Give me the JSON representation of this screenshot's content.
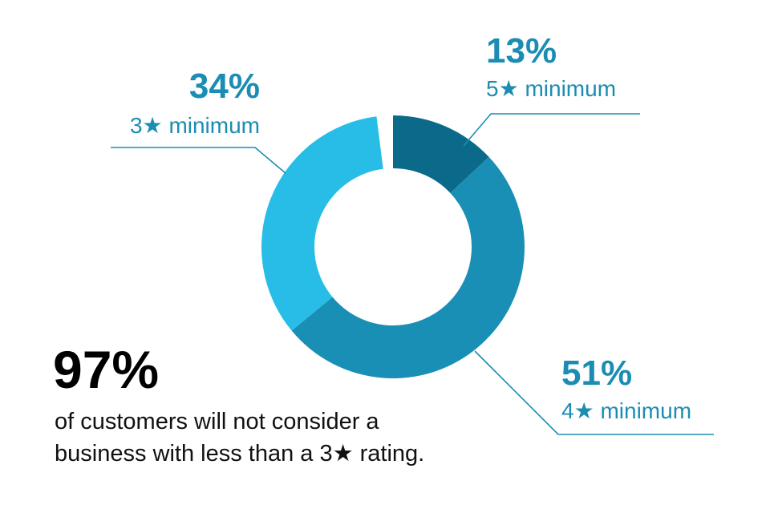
{
  "chart_data": {
    "type": "pie",
    "variant": "donut",
    "categories": [
      "5★ minimum",
      "4★ minimum",
      "3★ minimum"
    ],
    "values": [
      13,
      51,
      34
    ],
    "value_labels": [
      "13%",
      "51%",
      "34%"
    ],
    "unit": "%",
    "colors": [
      "#0b6a8a",
      "#1a8fb5",
      "#27bde6"
    ],
    "label_color": "#1b8db3",
    "gap_percent": 2,
    "legend": "none"
  },
  "callout": {
    "value": "97%",
    "line1": "of customers will not consider a",
    "line2": "business with less than a 3★ rating."
  }
}
